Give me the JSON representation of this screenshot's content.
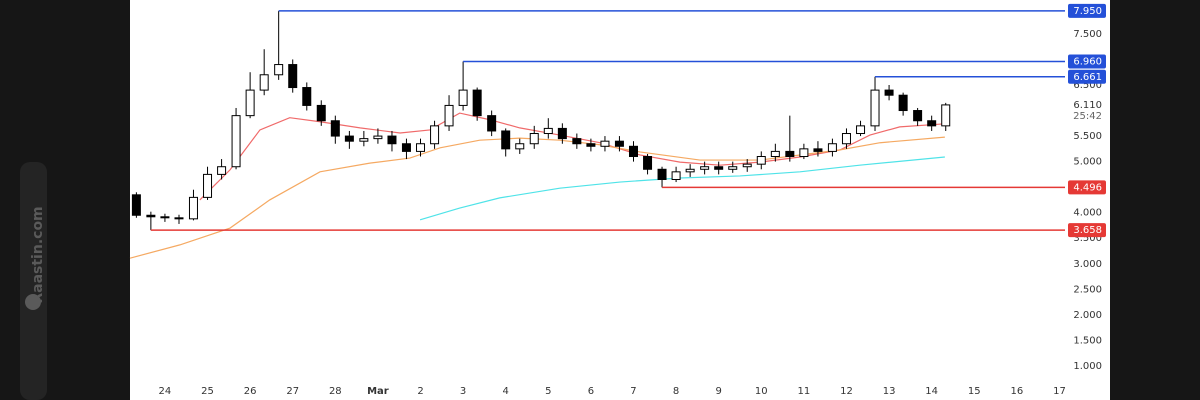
{
  "watermark": "Raastin.com",
  "chart_data": {
    "type": "candlestick",
    "xlim": [
      -0.82,
      21.13
    ],
    "ylim": [
      0.5,
      8.15
    ],
    "xticks": [
      {
        "value": 0,
        "label": "24"
      },
      {
        "value": 1,
        "label": "25"
      },
      {
        "value": 2,
        "label": "26"
      },
      {
        "value": 3,
        "label": "27"
      },
      {
        "value": 4,
        "label": "28"
      },
      {
        "value": 5,
        "label": "Mar"
      },
      {
        "value": 6,
        "label": "2"
      },
      {
        "value": 7,
        "label": "3"
      },
      {
        "value": 8,
        "label": "4"
      },
      {
        "value": 9,
        "label": "5"
      },
      {
        "value": 10,
        "label": "6"
      },
      {
        "value": 11,
        "label": "7"
      },
      {
        "value": 12,
        "label": "8"
      },
      {
        "value": 13,
        "label": "9"
      },
      {
        "value": 14,
        "label": "10"
      },
      {
        "value": 15,
        "label": "11"
      },
      {
        "value": 16,
        "label": "12"
      },
      {
        "value": 17,
        "label": "13"
      },
      {
        "value": 18,
        "label": "14"
      },
      {
        "value": 19,
        "label": "15"
      },
      {
        "value": 20,
        "label": "16"
      },
      {
        "value": 21,
        "label": "17"
      }
    ],
    "yticks": [
      {
        "value": 1,
        "label": "1.000"
      },
      {
        "value": 1.5,
        "label": "1.500"
      },
      {
        "value": 2,
        "label": "2.000"
      },
      {
        "value": 2.5,
        "label": "2.500"
      },
      {
        "value": 3,
        "label": "3.000"
      },
      {
        "value": 3.5,
        "label": "3.500"
      },
      {
        "value": 4,
        "label": "4.000"
      },
      {
        "value": 5,
        "label": "5.000"
      },
      {
        "value": 5.5,
        "label": "5.500"
      },
      {
        "value": 6.5,
        "label": "6.500"
      },
      {
        "value": 7.5,
        "label": "7.500"
      }
    ],
    "up_color": "#ffffff",
    "down_color": "#000000",
    "x": [
      -0.67,
      -0.33,
      0,
      0.33,
      0.67,
      1,
      1.33,
      1.67,
      2,
      2.33,
      2.67,
      3,
      3.33,
      3.67,
      4,
      4.33,
      4.67,
      5,
      5.33,
      5.67,
      6,
      6.33,
      6.67,
      7,
      7.33,
      7.67,
      8,
      8.33,
      8.67,
      9,
      9.33,
      9.67,
      10,
      10.33,
      10.67,
      11,
      11.33,
      11.67,
      12,
      12.33,
      12.67,
      13,
      13.33,
      13.67,
      14,
      14.33,
      14.67,
      15,
      15.33,
      15.67,
      16,
      16.33,
      16.67,
      17,
      17.33,
      17.67,
      18,
      18.33
    ],
    "open": [
      4.35,
      3.95,
      3.92,
      3.9,
      3.88,
      4.3,
      4.75,
      4.9,
      5.9,
      6.4,
      6.7,
      6.9,
      6.45,
      6.1,
      5.8,
      5.5,
      5.4,
      5.45,
      5.5,
      5.35,
      5.2,
      5.35,
      5.7,
      6.1,
      6.4,
      5.9,
      5.6,
      5.25,
      5.35,
      5.55,
      5.65,
      5.45,
      5.35,
      5.3,
      5.4,
      5.3,
      5.1,
      4.85,
      4.65,
      4.8,
      4.85,
      4.9,
      4.85,
      4.9,
      4.95,
      5.1,
      5.2,
      5.1,
      5.25,
      5.2,
      5.35,
      5.55,
      5.7,
      6.4,
      6.3,
      6.0,
      5.8,
      5.7
    ],
    "high": [
      4.4,
      4.02,
      3.98,
      3.96,
      4.45,
      4.9,
      5.05,
      6.05,
      6.75,
      7.2,
      7.95,
      7.0,
      6.55,
      6.2,
      5.9,
      5.6,
      5.6,
      5.65,
      5.6,
      5.45,
      5.45,
      5.8,
      6.3,
      6.96,
      6.45,
      6.0,
      5.65,
      5.45,
      5.7,
      5.85,
      5.75,
      5.55,
      5.45,
      5.5,
      5.5,
      5.4,
      5.15,
      4.9,
      4.9,
      4.95,
      5.0,
      5.0,
      5.0,
      5.05,
      5.2,
      5.35,
      5.9,
      5.35,
      5.4,
      5.45,
      5.65,
      5.8,
      6.661,
      6.5,
      6.35,
      6.05,
      5.9,
      6.15
    ],
    "low": [
      3.9,
      3.658,
      3.82,
      3.78,
      3.85,
      4.25,
      4.65,
      4.85,
      5.85,
      6.3,
      6.6,
      6.35,
      6.0,
      5.7,
      5.35,
      5.25,
      5.3,
      5.35,
      5.2,
      5.05,
      5.1,
      5.25,
      5.6,
      6.0,
      5.8,
      5.5,
      5.1,
      5.15,
      5.25,
      5.45,
      5.35,
      5.25,
      5.2,
      5.2,
      5.2,
      5.0,
      4.75,
      4.496,
      4.6,
      4.7,
      4.75,
      4.75,
      4.78,
      4.8,
      4.85,
      5.0,
      5.0,
      5.05,
      5.1,
      5.1,
      5.25,
      5.5,
      5.6,
      6.2,
      5.9,
      5.7,
      5.6,
      5.6
    ],
    "close": [
      3.95,
      3.92,
      3.9,
      3.88,
      4.3,
      4.75,
      4.9,
      5.9,
      6.4,
      6.7,
      6.9,
      6.45,
      6.1,
      5.8,
      5.5,
      5.4,
      5.45,
      5.5,
      5.35,
      5.2,
      5.35,
      5.7,
      6.1,
      6.4,
      5.9,
      5.6,
      5.25,
      5.35,
      5.55,
      5.65,
      5.45,
      5.35,
      5.3,
      5.4,
      5.3,
      5.1,
      4.85,
      4.65,
      4.8,
      4.85,
      4.9,
      4.85,
      4.9,
      4.95,
      5.1,
      5.2,
      5.1,
      5.25,
      5.2,
      5.35,
      5.55,
      5.7,
      6.4,
      6.3,
      6.0,
      5.8,
      5.7,
      6.11
    ],
    "lines": [
      {
        "color": "#f06a6a",
        "x": [
          0.82,
          1.53,
          2.23,
          2.93,
          3.64,
          4.58,
          5.52,
          6.22,
          6.92,
          7.63,
          8.33,
          9.27,
          10.21,
          11.15,
          12.09,
          13.03,
          13.97,
          14.91,
          15.85,
          16.55,
          17.25,
          18.31
        ],
        "values": [
          4.25,
          4.84,
          5.62,
          5.86,
          5.78,
          5.66,
          5.56,
          5.62,
          5.95,
          5.82,
          5.66,
          5.52,
          5.37,
          5.13,
          4.99,
          4.93,
          4.99,
          5.09,
          5.23,
          5.52,
          5.68,
          5.74
        ]
      },
      {
        "color": "#f5a962",
        "x": [
          -0.82,
          0.35,
          1.53,
          2.46,
          3.64,
          4.81,
          5.75,
          6.46,
          7.39,
          8.33,
          9.27,
          10.21,
          11.15,
          12.56,
          13.97,
          14.91,
          15.85,
          16.79,
          18.31
        ],
        "values": [
          3.11,
          3.37,
          3.7,
          4.25,
          4.8,
          4.97,
          5.07,
          5.27,
          5.42,
          5.46,
          5.42,
          5.33,
          5.19,
          5.03,
          5.03,
          5.13,
          5.23,
          5.37,
          5.48
        ]
      },
      {
        "color": "#4fe3e8",
        "x": [
          5.99,
          6.92,
          7.86,
          9.27,
          10.68,
          12.09,
          13.5,
          14.91,
          16.31,
          18.31
        ],
        "values": [
          3.86,
          4.09,
          4.29,
          4.48,
          4.6,
          4.68,
          4.72,
          4.8,
          4.93,
          5.09
        ]
      }
    ],
    "levels": [
      {
        "value": 7.95,
        "label": "7.950",
        "color": "#2450d8",
        "x": 2.67
      },
      {
        "value": 6.96,
        "label": "6.960",
        "color": "#2450d8",
        "x": 7
      },
      {
        "value": 6.661,
        "label": "6.661",
        "color": "#2450d8",
        "x": 16.67
      },
      {
        "value": 4.496,
        "label": "4.496",
        "color": "#e53935",
        "x": 11.67
      },
      {
        "value": 3.658,
        "label": "3.658",
        "color": "#e53935",
        "x": -0.33
      }
    ],
    "price_label": {
      "value": 6.11,
      "label": "6.110",
      "countdown": "25:42"
    }
  }
}
